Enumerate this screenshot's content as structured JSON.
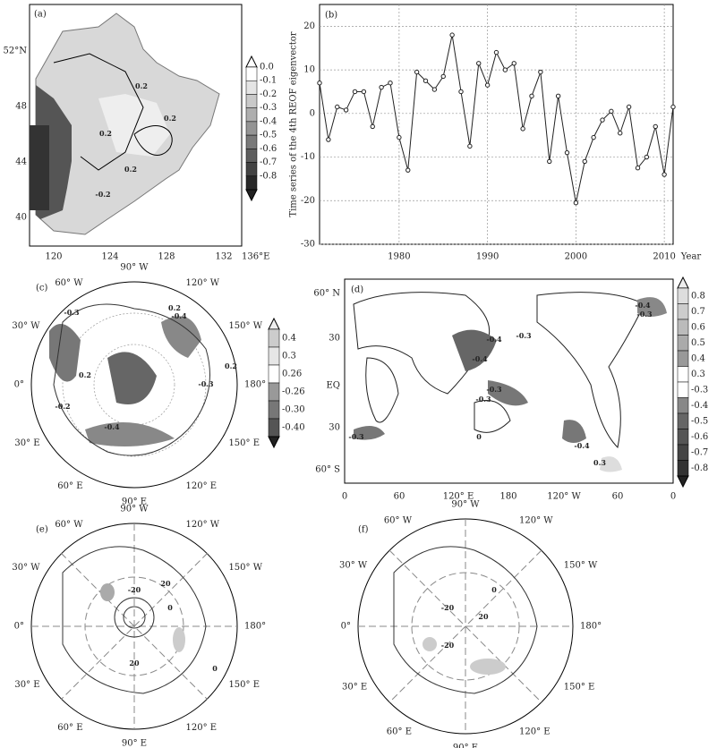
{
  "chart_data": {
    "type": "line",
    "label": "(b)",
    "y_label": "Time series of the 4th REOF eigenvector",
    "x_label": "Year",
    "x": [
      1971,
      1972,
      1973,
      1974,
      1975,
      1976,
      1977,
      1978,
      1979,
      1980,
      1981,
      1982,
      1983,
      1984,
      1985,
      1986,
      1987,
      1988,
      1989,
      1990,
      1991,
      1992,
      1993,
      1994,
      1995,
      1996,
      1997,
      1998,
      1999,
      2000,
      2001,
      2002,
      2003,
      2004,
      2005,
      2006,
      2007,
      2008,
      2009,
      2010,
      2011
    ],
    "values": [
      7,
      -6,
      1.5,
      0.8,
      5,
      5,
      -3,
      6,
      7,
      -5.5,
      -13,
      9.5,
      7.5,
      5.5,
      8.5,
      18,
      5,
      -7.5,
      11.5,
      6.5,
      14,
      10,
      11.5,
      -3.5,
      4,
      9.5,
      -11,
      4,
      -9,
      -20.5,
      -11,
      -5.5,
      -1.5,
      0.5,
      -4.5,
      1.5,
      -12.5,
      -10,
      -3,
      -14,
      1.5
    ],
    "color": "#222",
    "xlim": [
      1971,
      2011
    ],
    "xticks": [
      1980,
      1990,
      2000,
      2010
    ],
    "ylim": [
      -30,
      25
    ],
    "yticks": [
      -30,
      -20,
      -10,
      0,
      10,
      20
    ],
    "grid": true
  },
  "maps": {
    "a": {
      "label": "(a)",
      "lat_labels": [
        "52°N",
        "48",
        "44",
        "40"
      ],
      "lon_labels": [
        "120",
        "124",
        "128",
        "132",
        "136°E"
      ],
      "colorbar": [
        "0.0",
        "-0.1",
        "-0.2",
        "-0.3",
        "-0.4",
        "-0.5",
        "-0.6",
        "-0.7",
        "-0.8"
      ],
      "contour_labels": [
        "0.2",
        "0.2",
        "0.2",
        "0.2",
        "-0.2"
      ]
    },
    "c": {
      "label": "(c)",
      "ring_labels": [
        "90° W",
        "120° W",
        "150° W",
        "180°",
        "150° E",
        "120° E",
        "90° E",
        "60° E",
        "30° E",
        "0°",
        "30° W",
        "60° W"
      ],
      "colorbar": [
        "0.4",
        "0.3",
        "0.26",
        "-0.26",
        "-0.30",
        "-0.40"
      ],
      "contour_labels": [
        "-0.3",
        "0.2",
        "-0.4",
        "0.2",
        "-0.3",
        "-0.4",
        "-0.2",
        "0.2"
      ]
    },
    "d": {
      "label": "(d)",
      "lat_labels": [
        "60° N",
        "30",
        "EQ",
        "30",
        "60° S"
      ],
      "lon_labels": [
        "0",
        "60",
        "120° E",
        "180",
        "120° W",
        "60",
        "0"
      ],
      "colorbar": [
        "0.8",
        "0.7",
        "0.6",
        "0.5",
        "0.4",
        "0.3",
        "-0.3",
        "-0.4",
        "-0.5",
        "-0.6",
        "-0.7",
        "-0.8"
      ],
      "contour_labels": [
        "-0.4",
        "-0.3",
        "-0.4",
        "-0.3",
        "-0.3",
        "-0.3",
        "0",
        "-0.4",
        "0.3",
        "-0.4",
        "-0.3"
      ]
    },
    "e": {
      "label": "(e)",
      "ring_labels": [
        "90° W",
        "120° W",
        "150° W",
        "180°",
        "150° E",
        "120° E",
        "90° E",
        "60° E",
        "30° E",
        "0°",
        "30° W",
        "60° W"
      ],
      "contour_labels": [
        "-20",
        "20",
        "20",
        "0",
        "0"
      ]
    },
    "f": {
      "label": "(f)",
      "ring_labels": [
        "90° W",
        "120° W",
        "150° W",
        "180°",
        "150° E",
        "120° E",
        "90° E",
        "60° E",
        "30° E",
        "0°",
        "30° W",
        "60° W"
      ],
      "contour_labels": [
        "20",
        "-20",
        "0",
        "-20"
      ]
    }
  }
}
